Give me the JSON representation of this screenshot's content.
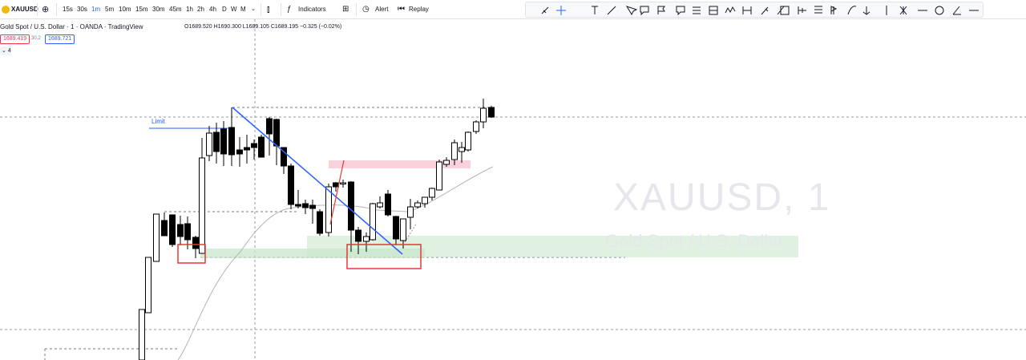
{
  "toolbar": {
    "symbol": "XAUUSD",
    "intervals": [
      "15s",
      "30s",
      "1m",
      "5m",
      "10m",
      "15m",
      "30m",
      "45m",
      "1h",
      "2h",
      "4h",
      "D",
      "W",
      "M"
    ],
    "active_interval": "1m",
    "indicators_label": "Indicators",
    "alert_label": "Alert",
    "replay_label": "Replay"
  },
  "legend": {
    "title": "Gold Spot / U.S. Dollar · 1 · OANDA · TradingView",
    "ohlc": "O1689.520 H1690.300 L1689.105 C1689.195 −0.325 (−0.02%)",
    "sell_price": "1689.419",
    "spread": "30.2",
    "buy_price": "1689.721",
    "indicator_count": "4"
  },
  "annotations": {
    "limit_label": "Limit"
  },
  "watermark": {
    "symbol_interval": "XAUUSD, 1",
    "description": "Gold Spot / U.S. Dollar"
  },
  "colors": {
    "up_candle": "#ffffff",
    "down_candle": "#000000",
    "trendline": "#2962ff",
    "pink_zone": "#f8c9d4",
    "green_zone": "#c8e6c9",
    "red_box": "#e53935",
    "sell": "#f23645",
    "buy": "#2962ff"
  },
  "draw_tools": [
    "trend-line-icon",
    "crosshair-icon",
    "text-icon",
    "line-icon",
    "arrow-icon",
    "callout-icon",
    "flag-icon",
    "note-icon",
    "channel-icon",
    "projection-icon",
    "zigzag-icon",
    "pitchfork-icon",
    "brush-icon",
    "rectangle-icon",
    "measure-icon",
    "pin-icon",
    "curve-icon",
    "anchor-icon",
    "vertical-line-icon",
    "fib-icon",
    "horizontal-line-icon",
    "circle-icon",
    "pen-icon",
    "more-icon"
  ]
}
